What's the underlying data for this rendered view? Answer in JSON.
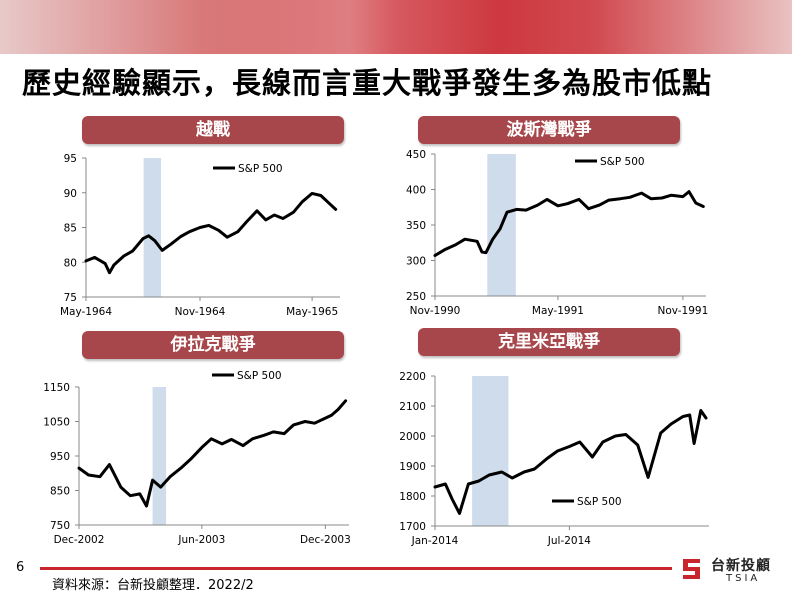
{
  "headline": "歷史經驗顯示，長線而言重大戰爭發生多為股市低點",
  "page_number": "6",
  "footer": {
    "source": "資料來源：台新投顧整理．2022/2"
  },
  "logo": {
    "name": "台新投顧",
    "en": "TSIA"
  },
  "colors": {
    "banner": "#c9252d",
    "panel_title": "#a7474b",
    "band": "#cfdcec",
    "line": "#000000"
  },
  "chart_data": [
    {
      "type": "line",
      "title": "越戰",
      "legend": "S&P 500",
      "xlabels": [
        "May-1964",
        "Nov-1964",
        "May-1965"
      ],
      "ylim": [
        75,
        95
      ],
      "yticks": [
        75,
        80,
        85,
        90,
        95
      ],
      "band": [
        "1964-08-02",
        "1964-08-30"
      ],
      "series": [
        {
          "name": "S&P 500",
          "x": [
            "1964-05-01",
            "1964-05-15",
            "1964-06-01",
            "1964-06-08",
            "1964-06-15",
            "1964-07-01",
            "1964-07-15",
            "1964-08-01",
            "1964-08-10",
            "1964-08-20",
            "1964-09-01",
            "1964-09-15",
            "1964-10-01",
            "1964-10-15",
            "1964-11-01",
            "1964-11-15",
            "1964-12-01",
            "1964-12-15",
            "1965-01-01",
            "1965-01-15",
            "1965-02-01",
            "1965-02-15",
            "1965-03-01",
            "1965-03-15",
            "1965-04-01",
            "1965-04-15",
            "1965-05-01",
            "1965-05-15",
            "1965-06-01",
            "1965-06-08"
          ],
          "y": [
            80.2,
            80.7,
            79.8,
            78.5,
            79.6,
            80.9,
            81.6,
            83.4,
            83.8,
            83.1,
            81.7,
            82.6,
            83.7,
            84.4,
            85.0,
            85.3,
            84.6,
            83.6,
            84.4,
            85.8,
            87.4,
            86.1,
            86.8,
            86.3,
            87.2,
            88.7,
            89.9,
            89.6,
            88.2,
            87.6
          ]
        }
      ]
    },
    {
      "type": "line",
      "title": "波斯灣戰爭",
      "legend": "S&P 500",
      "xlabels": [
        "Nov-1990",
        "May-1991",
        "Nov-1991"
      ],
      "ylim": [
        250,
        450
      ],
      "yticks": [
        250,
        300,
        350,
        400,
        450
      ],
      "band": [
        "1991-01-17",
        "1991-02-28"
      ],
      "series": [
        {
          "name": "S&P 500",
          "x": [
            "1990-11-01",
            "1990-11-15",
            "1990-12-01",
            "1990-12-15",
            "1991-01-02",
            "1991-01-09",
            "1991-01-15",
            "1991-01-25",
            "1991-02-05",
            "1991-02-15",
            "1991-03-01",
            "1991-03-15",
            "1991-04-01",
            "1991-04-15",
            "1991-05-01",
            "1991-05-15",
            "1991-06-01",
            "1991-06-15",
            "1991-07-01",
            "1991-07-15",
            "1991-08-01",
            "1991-08-15",
            "1991-09-01",
            "1991-09-15",
            "1991-10-01",
            "1991-10-15",
            "1991-11-01",
            "1991-11-10",
            "1991-11-20",
            "1991-12-01"
          ],
          "y": [
            307,
            315,
            322,
            330,
            327,
            312,
            311,
            330,
            345,
            368,
            372,
            371,
            378,
            386,
            377,
            380,
            386,
            373,
            378,
            385,
            387,
            389,
            395,
            387,
            388,
            392,
            390,
            397,
            381,
            376
          ]
        }
      ]
    },
    {
      "type": "line",
      "title": "伊拉克戰爭",
      "legend": "S&P 500",
      "xlabels": [
        "Dec-2002",
        "Jun-2003",
        "Dec-2003"
      ],
      "ylim": [
        750,
        1150
      ],
      "yticks": [
        750,
        850,
        950,
        1050,
        1150
      ],
      "band": [
        "2003-03-20",
        "2003-04-09"
      ],
      "series": [
        {
          "name": "S&P 500",
          "x": [
            "2002-12-01",
            "2002-12-15",
            "2003-01-01",
            "2003-01-15",
            "2003-02-01",
            "2003-02-15",
            "2003-03-01",
            "2003-03-11",
            "2003-03-20",
            "2003-04-01",
            "2003-04-15",
            "2003-05-01",
            "2003-05-15",
            "2003-06-01",
            "2003-06-15",
            "2003-07-01",
            "2003-07-15",
            "2003-08-01",
            "2003-08-15",
            "2003-09-01",
            "2003-09-15",
            "2003-10-01",
            "2003-10-15",
            "2003-11-01",
            "2003-11-15",
            "2003-12-01",
            "2003-12-10",
            "2003-12-20",
            "2003-12-31"
          ],
          "y": [
            915,
            895,
            890,
            925,
            860,
            835,
            840,
            805,
            880,
            860,
            890,
            915,
            940,
            975,
            1000,
            985,
            998,
            980,
            1000,
            1010,
            1020,
            1015,
            1040,
            1050,
            1045,
            1060,
            1068,
            1085,
            1110
          ]
        }
      ]
    },
    {
      "type": "line",
      "title": "克里米亞戰爭",
      "legend": "S&P 500",
      "xlabels": [
        "Jan-2014",
        "Jul-2014"
      ],
      "ylim": [
        1700,
        2200
      ],
      "yticks": [
        1700,
        1800,
        1900,
        2000,
        2100,
        2200
      ],
      "band": [
        "2014-02-20",
        "2014-04-10"
      ],
      "series": [
        {
          "name": "S&P 500",
          "x": [
            "2014-01-01",
            "2014-01-15",
            "2014-01-24",
            "2014-02-03",
            "2014-02-15",
            "2014-03-01",
            "2014-03-15",
            "2014-04-01",
            "2014-04-15",
            "2014-05-01",
            "2014-05-15",
            "2014-06-01",
            "2014-06-15",
            "2014-07-01",
            "2014-07-15",
            "2014-08-01",
            "2014-08-15",
            "2014-09-01",
            "2014-09-15",
            "2014-10-01",
            "2014-10-15",
            "2014-11-01",
            "2014-11-15",
            "2014-12-01",
            "2014-12-10",
            "2014-12-16",
            "2014-12-25",
            "2015-01-01"
          ],
          "y": [
            1830,
            1840,
            1790,
            1742,
            1840,
            1850,
            1870,
            1880,
            1860,
            1880,
            1890,
            1925,
            1950,
            1965,
            1980,
            1930,
            1980,
            2000,
            2005,
            1970,
            1862,
            2010,
            2040,
            2065,
            2070,
            1975,
            2085,
            2060
          ]
        }
      ]
    }
  ]
}
